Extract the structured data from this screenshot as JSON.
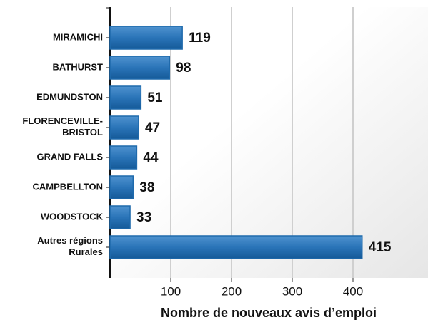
{
  "chart_data": {
    "type": "bar",
    "orientation": "horizontal",
    "categories": [
      "MIRAMICHI",
      "BATHURST",
      "EDMUNDSTON",
      "FLORENCEVILLE-\nBRISTOL",
      "GRAND FALLS",
      "CAMPBELLTON",
      "WOODSTOCK",
      "Autres régions\nRurales"
    ],
    "values": [
      119,
      98,
      51,
      47,
      44,
      38,
      33,
      415
    ],
    "color": "#1f6aac",
    "xlabel": "Nombre de nouveaux avis d’emploi",
    "xlim": [
      0,
      510
    ],
    "xticks": [
      100,
      200,
      300,
      400
    ],
    "grid": true
  }
}
